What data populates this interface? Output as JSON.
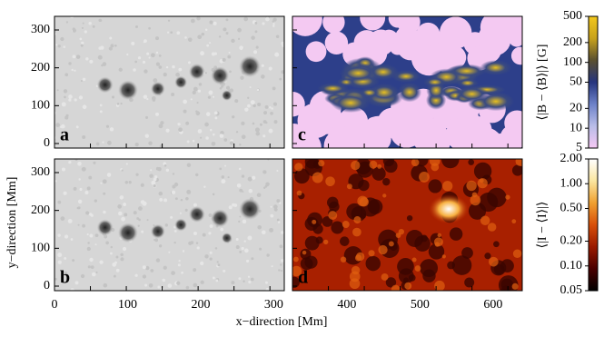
{
  "chart_data": {
    "type": "image",
    "xlabel": "x−direction   [Mm]",
    "ylabel": "y−direction   [Mm]",
    "xlim": [
      0,
      640
    ],
    "xticks": [
      0,
      100,
      200,
      300,
      400,
      500,
      600
    ],
    "ylim": [
      -12,
      336
    ],
    "yticks": [
      0,
      100,
      200,
      300
    ],
    "panels": [
      {
        "label": "a",
        "style": "continuum"
      },
      {
        "label": "c",
        "style": "magnetic"
      },
      {
        "label": "b",
        "style": "continuum"
      },
      {
        "label": "d",
        "style": "intensity"
      }
    ],
    "colorbars": [
      {
        "label": "⟨|B − ⟨B⟩|⟩  [G]",
        "log": true,
        "lim": [
          5,
          500
        ],
        "ticks": [
          5,
          10,
          20,
          50,
          100,
          200,
          500
        ],
        "colors": [
          "#f6c8f4",
          "#b9bde8",
          "#6d82c9",
          "#26357e",
          "#5a5030",
          "#c8a21c",
          "#f3c81d"
        ]
      },
      {
        "label": "⟨|I − ⟨I⟩|⟩",
        "log": true,
        "lim": [
          0.05,
          2
        ],
        "ticks": [
          {
            "value": 0.05,
            "label": "0.05"
          },
          {
            "value": 0.1,
            "label": "0.10"
          },
          {
            "value": 0.2,
            "label": "0.20"
          },
          {
            "value": 0.5,
            "label": "0.50"
          },
          {
            "value": 1,
            "label": "1.00"
          },
          {
            "value": 2,
            "label": "2.00"
          }
        ],
        "colors": [
          "#000000",
          "#4a0000",
          "#9a1a00",
          "#d8500a",
          "#f0a030",
          "#fbe6a0",
          "#ffffff"
        ]
      }
    ]
  }
}
